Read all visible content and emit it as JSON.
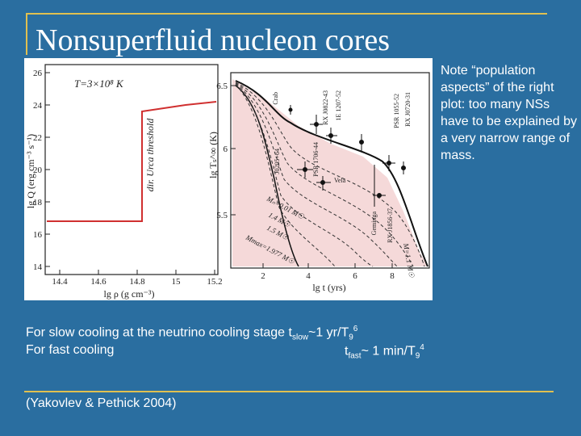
{
  "slide": {
    "title": "Nonsuperfluid nucleon cores",
    "note": "Note “population aspects” of the right plot: too many NSs have to be explained by a very narrow range of mass.",
    "slow_cooling": {
      "prefix": "For slow cooling at the neutrino cooling stage t",
      "sub1": "slow",
      "mid": "~1 yr/T",
      "sub2": "9",
      "sup": "6"
    },
    "fast_cooling": {
      "prefix": "For fast cooling",
      "t": "t",
      "sub1": "fast",
      "mid": "~ 1 min/T",
      "sub2": "9",
      "sup": "4"
    },
    "citation": "(Yakovlev & Pethick 2004)"
  },
  "left_plot": {
    "annotation_T": "T=3×10⁸ K",
    "annotation_threshold": "dir. Urca threshold",
    "ylabel": "lg Q (erg cm⁻³ s⁻¹)",
    "xlabel": "lg ρ (g cm⁻³)",
    "yticks": [
      "26",
      "24",
      "22",
      "20",
      "18",
      "16",
      "14"
    ],
    "xticks": [
      "14.4",
      "14.6",
      "14.8",
      "15",
      "15.2"
    ],
    "line_color": "#d03030"
  },
  "right_plot": {
    "ylabel": "lg Tₛ^∞ (K)",
    "xlabel": "lg t (yrs)",
    "yticks": [
      "6.5",
      "6",
      "5.5"
    ],
    "xticks": [
      "2",
      "4",
      "6",
      "8"
    ],
    "labels": {
      "crab": "Crab",
      "rxj0822": "RX J0822-43",
      "b1207": "1E 1207-52",
      "j0205": "J0205+64",
      "psr1706": "PSR 1706-44",
      "vela": "Vela",
      "geminga": "Geminga",
      "psr1055": "PSR 1055-52",
      "rxj0720": "RX J0720-31",
      "rxj1856": "RX J1856-37",
      "mass_labels": [
        "Mmax=1.977 M☉",
        "1.5 M☉",
        "1.4 M☉",
        "M=1.1 M☉",
        "Mₙ=0.01 M☉"
      ]
    }
  }
}
